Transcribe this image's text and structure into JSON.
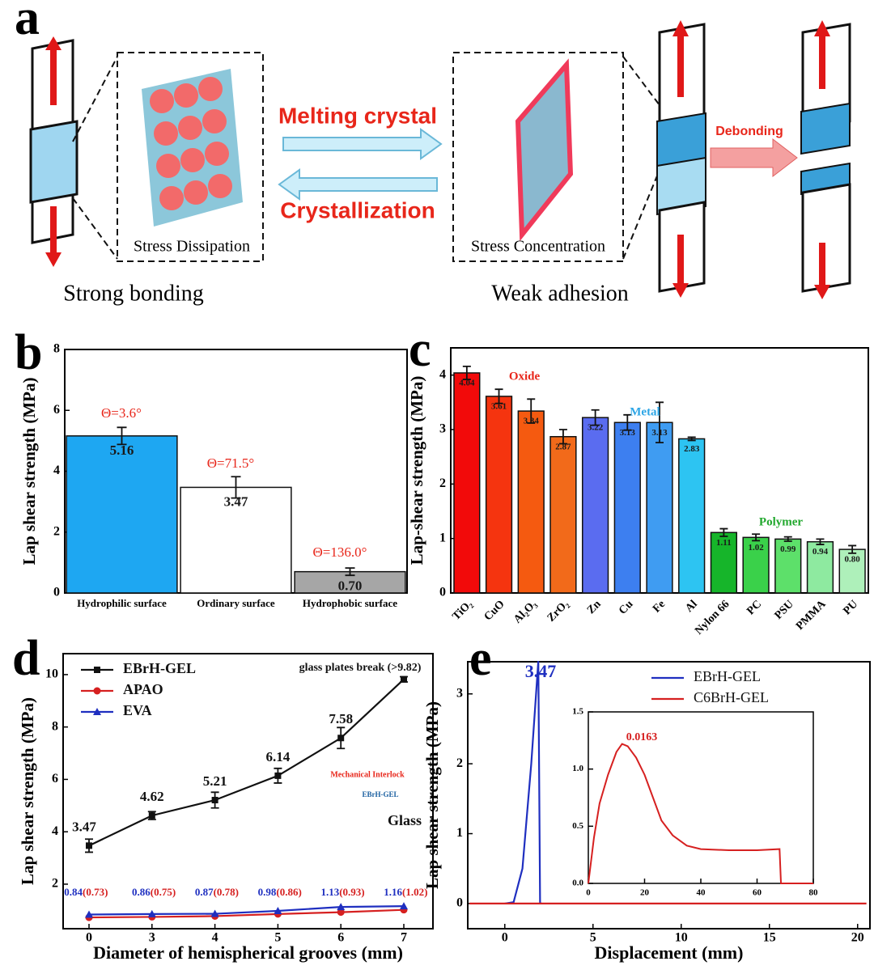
{
  "diagram": {
    "panel_label": "a",
    "arrow_forward": "Melting crystal",
    "arrow_back": "Crystallization",
    "left_box": "Stress Dissipation",
    "right_box": "Stress Concentration",
    "debond": "Debonding",
    "left_caption": "Strong bonding",
    "right_caption": "Weak adhesion"
  },
  "chart_data": [
    {
      "type": "bar",
      "panel_label": "b",
      "ylabel": "Lap shear strength (MPa)",
      "categories": [
        "Hydrophilic surface",
        "Ordinary surface",
        "Hydrophobic surface"
      ],
      "values": [
        5.16,
        3.47,
        0.7
      ],
      "value_labels": [
        "5.16",
        "3.47",
        "0.70"
      ],
      "errors": [
        0.28,
        0.35,
        0.12
      ],
      "colors": [
        "#1ea7f2",
        "#ffffff",
        "#a6a6a6"
      ],
      "ylim": [
        0,
        8
      ],
      "yticks": [
        0,
        2,
        4,
        6,
        8
      ],
      "annotations": [
        {
          "text": "Θ=3.6°",
          "color": "#e8261a"
        },
        {
          "text": "Θ=71.5°",
          "color": "#e8261a"
        },
        {
          "text": "Θ=136.0°",
          "color": "#e8261a"
        }
      ]
    },
    {
      "type": "bar",
      "panel_label": "c",
      "ylabel": "Lap-shear strength (MPa)",
      "categories": [
        "TiO₂",
        "CuO",
        "Al₂O₃",
        "ZrO₂",
        "Zn",
        "Cu",
        "Fe",
        "Al",
        "Nylon 66",
        "PC",
        "PSU",
        "PMMA",
        "PU"
      ],
      "values": [
        4.04,
        3.61,
        3.34,
        2.87,
        3.22,
        3.13,
        3.13,
        2.83,
        1.11,
        1.02,
        0.99,
        0.94,
        0.8
      ],
      "value_labels": [
        "4.04",
        "3.61",
        "3.34",
        "2.87",
        "3.22",
        "3.13",
        "3.13",
        "2.83",
        "1.11",
        "1.02",
        "0.99",
        "0.94",
        "0.80"
      ],
      "errors": [
        0.12,
        0.13,
        0.22,
        0.13,
        0.14,
        0.14,
        0.37,
        0.03,
        0.07,
        0.06,
        0.04,
        0.05,
        0.07
      ],
      "colors": [
        "#f20a0a",
        "#f5340f",
        "#f55a10",
        "#f26a1a",
        "#5a6cf0",
        "#3d7ff0",
        "#3f9cf2",
        "#2dc4f2",
        "#16b52a",
        "#3ad14a",
        "#5de06a",
        "#8eeaa0",
        "#aef0ba"
      ],
      "ylim": [
        0,
        4.5
      ],
      "yticks": [
        0,
        1,
        2,
        3,
        4
      ],
      "annotations": [
        {
          "text": "Oxide",
          "color": "#e8261a"
        },
        {
          "text": "Metal",
          "color": "#2ea6e6"
        },
        {
          "text": "Polymer",
          "color": "#22a82e"
        }
      ]
    },
    {
      "type": "line",
      "panel_label": "d",
      "ylabel": "Lap shear strength (MPa)",
      "xlabel": "Diameter of hemispherical grooves (mm)",
      "categories": [
        "0",
        "3",
        "4",
        "5",
        "6",
        "7"
      ],
      "legend": "upper left",
      "series": [
        {
          "name": "EBrH-GEL",
          "color": "#111111",
          "marker": "square",
          "values": [
            3.47,
            4.62,
            5.21,
            6.14,
            7.58,
            9.82
          ],
          "errors": [
            0.25,
            0.15,
            0.3,
            0.28,
            0.4,
            0.1
          ],
          "value_labels": [
            "3.47",
            "4.62",
            "5.21",
            "6.14",
            "7.58",
            null
          ]
        },
        {
          "name": "APAO",
          "color": "#d62020",
          "marker": "circle",
          "values": [
            0.73,
            0.75,
            0.78,
            0.86,
            0.93,
            1.02
          ],
          "value_labels": [
            "(0.73)",
            "(0.75)",
            "(0.78)",
            "(0.86)",
            "(0.93)",
            "(1.02)"
          ]
        },
        {
          "name": "EVA",
          "color": "#1f2fc0",
          "marker": "triangle",
          "values": [
            0.84,
            0.86,
            0.87,
            0.98,
            1.13,
            1.16
          ],
          "value_labels": [
            "0.84",
            "0.86",
            "0.87",
            "0.98",
            "1.13",
            "1.16"
          ]
        }
      ],
      "ylim": [
        0.3,
        10.8
      ],
      "yticks": [
        2,
        4,
        6,
        8,
        10
      ],
      "annotations": [
        {
          "text": "glass plates break (>9.82)",
          "color": "#111111"
        },
        {
          "text": "Mechanical Interlock",
          "color": "#e8261a"
        },
        {
          "text": "EBrH-GEL",
          "color": "#1a5fa0"
        },
        {
          "text": "Glass",
          "color": "#111111"
        }
      ]
    },
    {
      "type": "line",
      "panel_label": "e",
      "ylabel": "Lap shear strength (MPa)",
      "xlabel": "Displacement (mm)",
      "legend": "upper right",
      "series": [
        {
          "name": "EBrH-GEL",
          "color": "#1f2fc0",
          "x": [
            0,
            0.5,
            1,
            1.5,
            1.9,
            2,
            2.1
          ],
          "values": [
            0,
            0.02,
            0.5,
            2,
            3.47,
            0,
            0
          ]
        },
        {
          "name": "C6BrH-GEL",
          "color": "#d62020",
          "x": [
            -2,
            20.5
          ],
          "values": [
            0,
            0
          ]
        }
      ],
      "xlim": [
        -2.1,
        20.7
      ],
      "xticks": [
        0,
        5,
        10,
        15,
        20
      ],
      "ylim": [
        -0.36,
        3.46
      ],
      "yticks": [
        0,
        1,
        2,
        3
      ],
      "annotations": [
        {
          "text": "3.47",
          "color": "#1f2fc0"
        }
      ]
    },
    {
      "type": "line",
      "series": [
        {
          "color": "#d62020",
          "x": [
            0,
            1,
            2,
            4,
            7,
            10,
            12,
            14,
            17,
            20,
            23,
            26,
            30,
            35,
            40,
            50,
            60,
            68,
            68.5,
            80
          ],
          "values": [
            0,
            0.2,
            0.4,
            0.7,
            0.95,
            1.15,
            1.22,
            1.2,
            1.1,
            0.95,
            0.75,
            0.55,
            0.42,
            0.33,
            0.3,
            0.29,
            0.29,
            0.3,
            0,
            0
          ]
        }
      ],
      "xlim": [
        0,
        80
      ],
      "xticks": [
        0,
        20,
        40,
        60,
        80
      ],
      "ylim": [
        0,
        1.5
      ],
      "yticks": [
        {
          "value": 0,
          "label": "0.0"
        },
        {
          "value": 0.5,
          "label": "0.5"
        },
        {
          "value": 1,
          "label": "1.0"
        },
        {
          "value": 1.5,
          "label": "1.5"
        }
      ],
      "annotations": [
        {
          "text": "0.0163",
          "color": "#d62020"
        }
      ]
    }
  ]
}
